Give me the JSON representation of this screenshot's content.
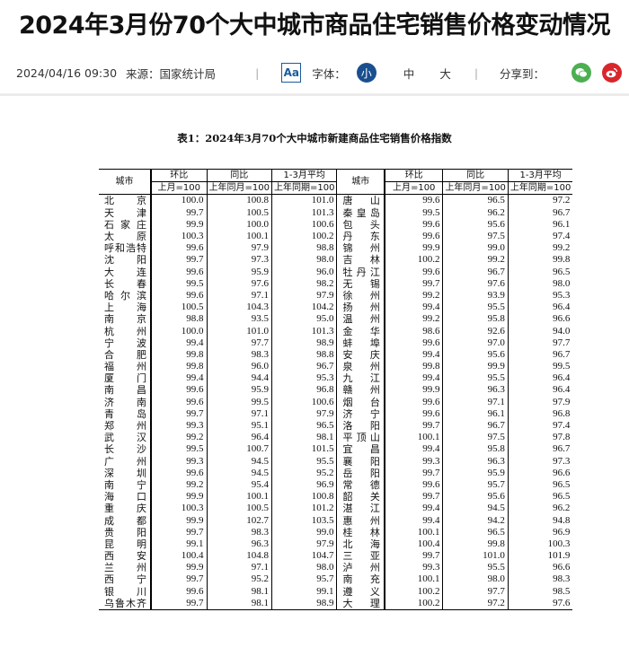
{
  "title": "2024年3月份70个大中城市商品住宅销售价格变动情况",
  "meta": {
    "datetime": "2024/04/16 09:30",
    "source": "来源：国家统计局",
    "font_icon_label": "Aa",
    "font_label": "字体：",
    "font_sizes": [
      "小",
      "中",
      "大"
    ],
    "font_size_selected": "小",
    "share_label": "分享到：",
    "share_icons": [
      "wechat-icon",
      "weibo-icon"
    ],
    "accent_color": "#1a4f8f",
    "wechat_color": "#4caf50",
    "weibo_color": "#d9262c"
  },
  "table": {
    "caption": "表1：2024年3月70个大中城市新建商品住宅销售价格指数",
    "header": {
      "city": "城市",
      "mom": "环比",
      "yoy": "同比",
      "avg": "1-3月平均",
      "mom_base": "上月=100",
      "yoy_base": "上年同月=100",
      "avg_base": "上年同期=100"
    },
    "left": [
      [
        "北京",
        "100.0",
        "100.8",
        "101.0"
      ],
      [
        "天津",
        "99.7",
        "100.5",
        "101.3"
      ],
      [
        "石家庄",
        "99.9",
        "100.0",
        "100.6"
      ],
      [
        "太原",
        "100.3",
        "100.1",
        "100.2"
      ],
      [
        "呼和浩特",
        "99.6",
        "97.9",
        "98.8"
      ],
      [
        "沈阳",
        "99.7",
        "97.3",
        "98.0"
      ],
      [
        "大连",
        "99.6",
        "95.9",
        "96.0"
      ],
      [
        "长春",
        "99.5",
        "97.6",
        "98.2"
      ],
      [
        "哈尔滨",
        "99.6",
        "97.1",
        "97.9"
      ],
      [
        "上海",
        "100.5",
        "104.3",
        "104.2"
      ],
      [
        "南京",
        "98.8",
        "93.5",
        "95.0"
      ],
      [
        "杭州",
        "100.0",
        "101.0",
        "101.3"
      ],
      [
        "宁波",
        "99.4",
        "97.7",
        "98.9"
      ],
      [
        "合肥",
        "99.8",
        "98.3",
        "98.8"
      ],
      [
        "福州",
        "99.8",
        "96.0",
        "96.7"
      ],
      [
        "厦门",
        "99.4",
        "94.4",
        "95.3"
      ],
      [
        "南昌",
        "99.6",
        "95.9",
        "96.8"
      ],
      [
        "济南",
        "99.6",
        "99.5",
        "100.6"
      ],
      [
        "青岛",
        "99.7",
        "97.1",
        "97.9"
      ],
      [
        "郑州",
        "99.3",
        "95.1",
        "96.5"
      ],
      [
        "武汉",
        "99.2",
        "96.4",
        "98.1"
      ],
      [
        "长沙",
        "99.5",
        "100.7",
        "101.5"
      ],
      [
        "广州",
        "99.3",
        "94.5",
        "95.5"
      ],
      [
        "深圳",
        "99.6",
        "94.5",
        "95.2"
      ],
      [
        "南宁",
        "99.2",
        "95.4",
        "96.9"
      ],
      [
        "海口",
        "99.9",
        "100.1",
        "100.8"
      ],
      [
        "重庆",
        "100.3",
        "100.5",
        "101.2"
      ],
      [
        "成都",
        "99.9",
        "102.7",
        "103.5"
      ],
      [
        "贵阳",
        "99.7",
        "98.3",
        "99.0"
      ],
      [
        "昆明",
        "99.1",
        "96.3",
        "97.9"
      ],
      [
        "西安",
        "100.4",
        "104.8",
        "104.7"
      ],
      [
        "兰州",
        "99.9",
        "97.1",
        "98.0"
      ],
      [
        "西宁",
        "99.7",
        "95.2",
        "95.7"
      ],
      [
        "银川",
        "99.6",
        "98.1",
        "99.1"
      ],
      [
        "乌鲁木齐",
        "99.7",
        "98.1",
        "98.9"
      ]
    ],
    "right": [
      [
        "唐山",
        "99.6",
        "96.5",
        "97.2"
      ],
      [
        "秦皇岛",
        "99.5",
        "96.2",
        "96.7"
      ],
      [
        "包头",
        "99.6",
        "95.6",
        "96.1"
      ],
      [
        "丹东",
        "99.6",
        "97.5",
        "97.4"
      ],
      [
        "锦州",
        "99.9",
        "99.0",
        "99.2"
      ],
      [
        "吉林",
        "100.2",
        "99.2",
        "99.8"
      ],
      [
        "牡丹江",
        "99.6",
        "96.7",
        "96.5"
      ],
      [
        "无锡",
        "99.7",
        "97.6",
        "98.0"
      ],
      [
        "徐州",
        "99.2",
        "93.9",
        "95.3"
      ],
      [
        "扬州",
        "99.4",
        "95.5",
        "96.4"
      ],
      [
        "温州",
        "99.2",
        "95.8",
        "96.6"
      ],
      [
        "金华",
        "98.6",
        "92.6",
        "94.0"
      ],
      [
        "蚌埠",
        "99.6",
        "97.0",
        "97.7"
      ],
      [
        "安庆",
        "99.4",
        "95.6",
        "96.7"
      ],
      [
        "泉州",
        "99.8",
        "99.9",
        "99.5"
      ],
      [
        "九江",
        "99.4",
        "95.5",
        "96.4"
      ],
      [
        "赣州",
        "99.9",
        "96.3",
        "96.4"
      ],
      [
        "烟台",
        "99.6",
        "97.1",
        "97.9"
      ],
      [
        "济宁",
        "99.6",
        "96.1",
        "96.8"
      ],
      [
        "洛阳",
        "99.7",
        "96.7",
        "97.4"
      ],
      [
        "平顶山",
        "100.1",
        "97.5",
        "97.8"
      ],
      [
        "宜昌",
        "99.4",
        "95.8",
        "96.7"
      ],
      [
        "襄阳",
        "99.3",
        "96.3",
        "97.3"
      ],
      [
        "岳阳",
        "99.7",
        "95.9",
        "96.6"
      ],
      [
        "常德",
        "99.6",
        "95.7",
        "96.5"
      ],
      [
        "韶关",
        "99.7",
        "95.6",
        "96.5"
      ],
      [
        "湛江",
        "99.4",
        "94.5",
        "96.2"
      ],
      [
        "惠州",
        "99.4",
        "94.2",
        "94.8"
      ],
      [
        "桂林",
        "100.1",
        "96.5",
        "96.9"
      ],
      [
        "北海",
        "100.4",
        "99.8",
        "100.3"
      ],
      [
        "三亚",
        "99.7",
        "101.0",
        "101.9"
      ],
      [
        "泸州",
        "99.3",
        "95.5",
        "96.6"
      ],
      [
        "南充",
        "100.1",
        "98.0",
        "98.3"
      ],
      [
        "遵义",
        "100.2",
        "97.7",
        "98.5"
      ],
      [
        "大理",
        "100.2",
        "97.2",
        "97.6"
      ]
    ]
  }
}
